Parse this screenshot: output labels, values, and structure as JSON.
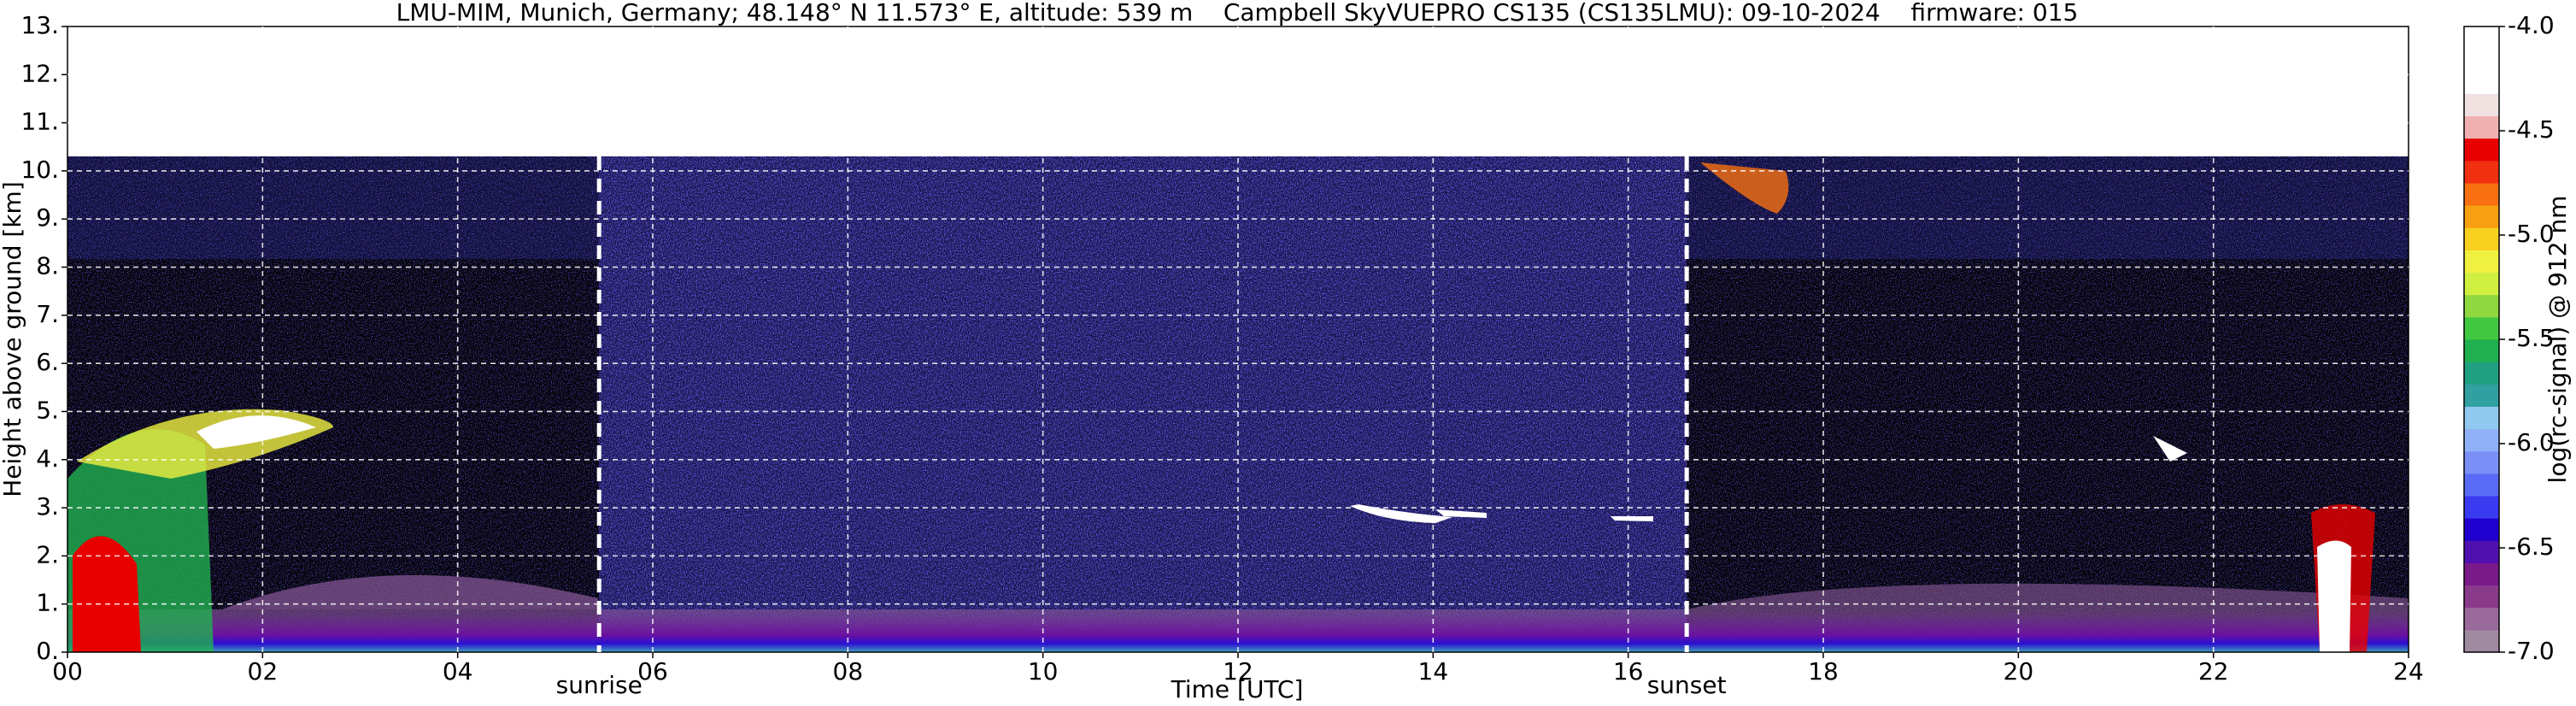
{
  "chart_data": {
    "type": "heatmap",
    "title": "LMU-MIM, Munich, Germany; 48.148° N 11.573° E, altitude: 539 m    Campbell SkyVUEPRO CS135 (CS135LMU): 09-10-2024    firmware: 015",
    "xlabel": "Time [UTC]",
    "ylabel": "Height above ground [km]",
    "xlim": [
      0,
      24
    ],
    "xticks": [
      {
        "value": 0,
        "label": "00"
      },
      {
        "value": 2,
        "label": "02"
      },
      {
        "value": 4,
        "label": "04"
      },
      {
        "value": 6,
        "label": "06"
      },
      {
        "value": 8,
        "label": "08"
      },
      {
        "value": 10,
        "label": "10"
      },
      {
        "value": 12,
        "label": "12"
      },
      {
        "value": 14,
        "label": "14"
      },
      {
        "value": 16,
        "label": "16"
      },
      {
        "value": 18,
        "label": "18"
      },
      {
        "value": 20,
        "label": "20"
      },
      {
        "value": 22,
        "label": "22"
      },
      {
        "value": 24,
        "label": "24"
      }
    ],
    "ylim": [
      0,
      13
    ],
    "yticks": [
      {
        "value": 0,
        "label": "0."
      },
      {
        "value": 1,
        "label": "1."
      },
      {
        "value": 2,
        "label": "2."
      },
      {
        "value": 3,
        "label": "3."
      },
      {
        "value": 4,
        "label": "4."
      },
      {
        "value": 5,
        "label": "5."
      },
      {
        "value": 6,
        "label": "6."
      },
      {
        "value": 7,
        "label": "7."
      },
      {
        "value": 8,
        "label": "8."
      },
      {
        "value": 9,
        "label": "9."
      },
      {
        "value": 10,
        "label": "10."
      },
      {
        "value": 11,
        "label": "11."
      },
      {
        "value": 12,
        "label": "12."
      },
      {
        "value": 13,
        "label": "13."
      }
    ],
    "grid": true,
    "colorbar": {
      "label": "log(rc-signal) @ 912 nm",
      "clim": [
        -7,
        -4
      ],
      "ticks": [
        {
          "value": -7,
          "label": "-7.0"
        },
        {
          "value": -6.5,
          "label": "-6.5"
        },
        {
          "value": -6,
          "label": "-6.0"
        },
        {
          "value": -5.5,
          "label": "-5.5"
        },
        {
          "value": -5,
          "label": "-5.0"
        },
        {
          "value": -4.5,
          "label": "-4.5"
        },
        {
          "value": -4,
          "label": "-4.0"
        }
      ],
      "colors": [
        "#a08aa0",
        "#9a6a9a",
        "#8a3a8a",
        "#7a1a8a",
        "#5010b0",
        "#2000d0",
        "#3a3af0",
        "#5a6af8",
        "#7a90f8",
        "#90b0f8",
        "#90c8f0",
        "#30a0a0",
        "#20a080",
        "#20b050",
        "#40c840",
        "#90d840",
        "#d0f040",
        "#f0f040",
        "#f8d020",
        "#f8a010",
        "#f87010",
        "#f03010",
        "#e80000",
        "#f0b0b0",
        "#f0e0e0",
        "#ffffff",
        "#ffffff",
        "#ffffff"
      ]
    },
    "annotations": [
      {
        "text": "sunrise",
        "x": 5.45
      },
      {
        "text": "sunset",
        "x": 16.6
      }
    ]
  }
}
